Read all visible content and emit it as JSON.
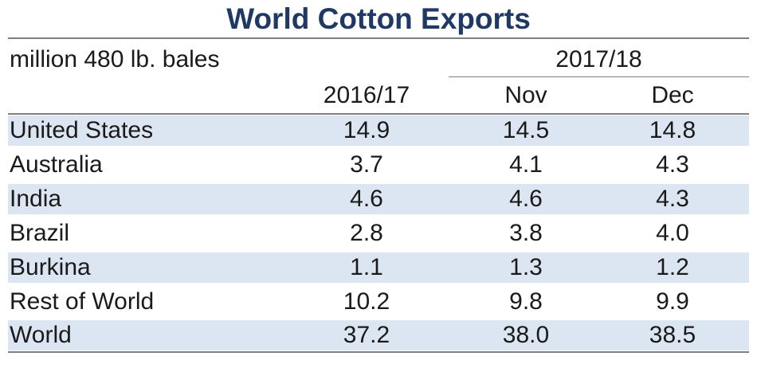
{
  "colors": {
    "title": "#1f3864",
    "band": "#dce6f2",
    "rule": "#7f7f7f"
  },
  "chart_data": {
    "type": "table",
    "title": "World Cotton Exports",
    "unit_label": "million 480 lb. bales",
    "group_header": "2017/18",
    "columns": [
      "2016/17",
      "Nov",
      "Dec"
    ],
    "rows": [
      {
        "label": "United States",
        "values": [
          "14.9",
          "14.5",
          "14.8"
        ]
      },
      {
        "label": "Australia",
        "values": [
          "3.7",
          "4.1",
          "4.3"
        ]
      },
      {
        "label": "India",
        "values": [
          "4.6",
          "4.6",
          "4.3"
        ]
      },
      {
        "label": "Brazil",
        "values": [
          "2.8",
          "3.8",
          "4.0"
        ]
      },
      {
        "label": "Burkina",
        "values": [
          "1.1",
          "1.3",
          "1.2"
        ]
      },
      {
        "label": "Rest of World",
        "values": [
          "10.2",
          "9.8",
          "9.9"
        ]
      },
      {
        "label": "World",
        "values": [
          "37.2",
          "38.0",
          "38.5"
        ]
      }
    ]
  }
}
